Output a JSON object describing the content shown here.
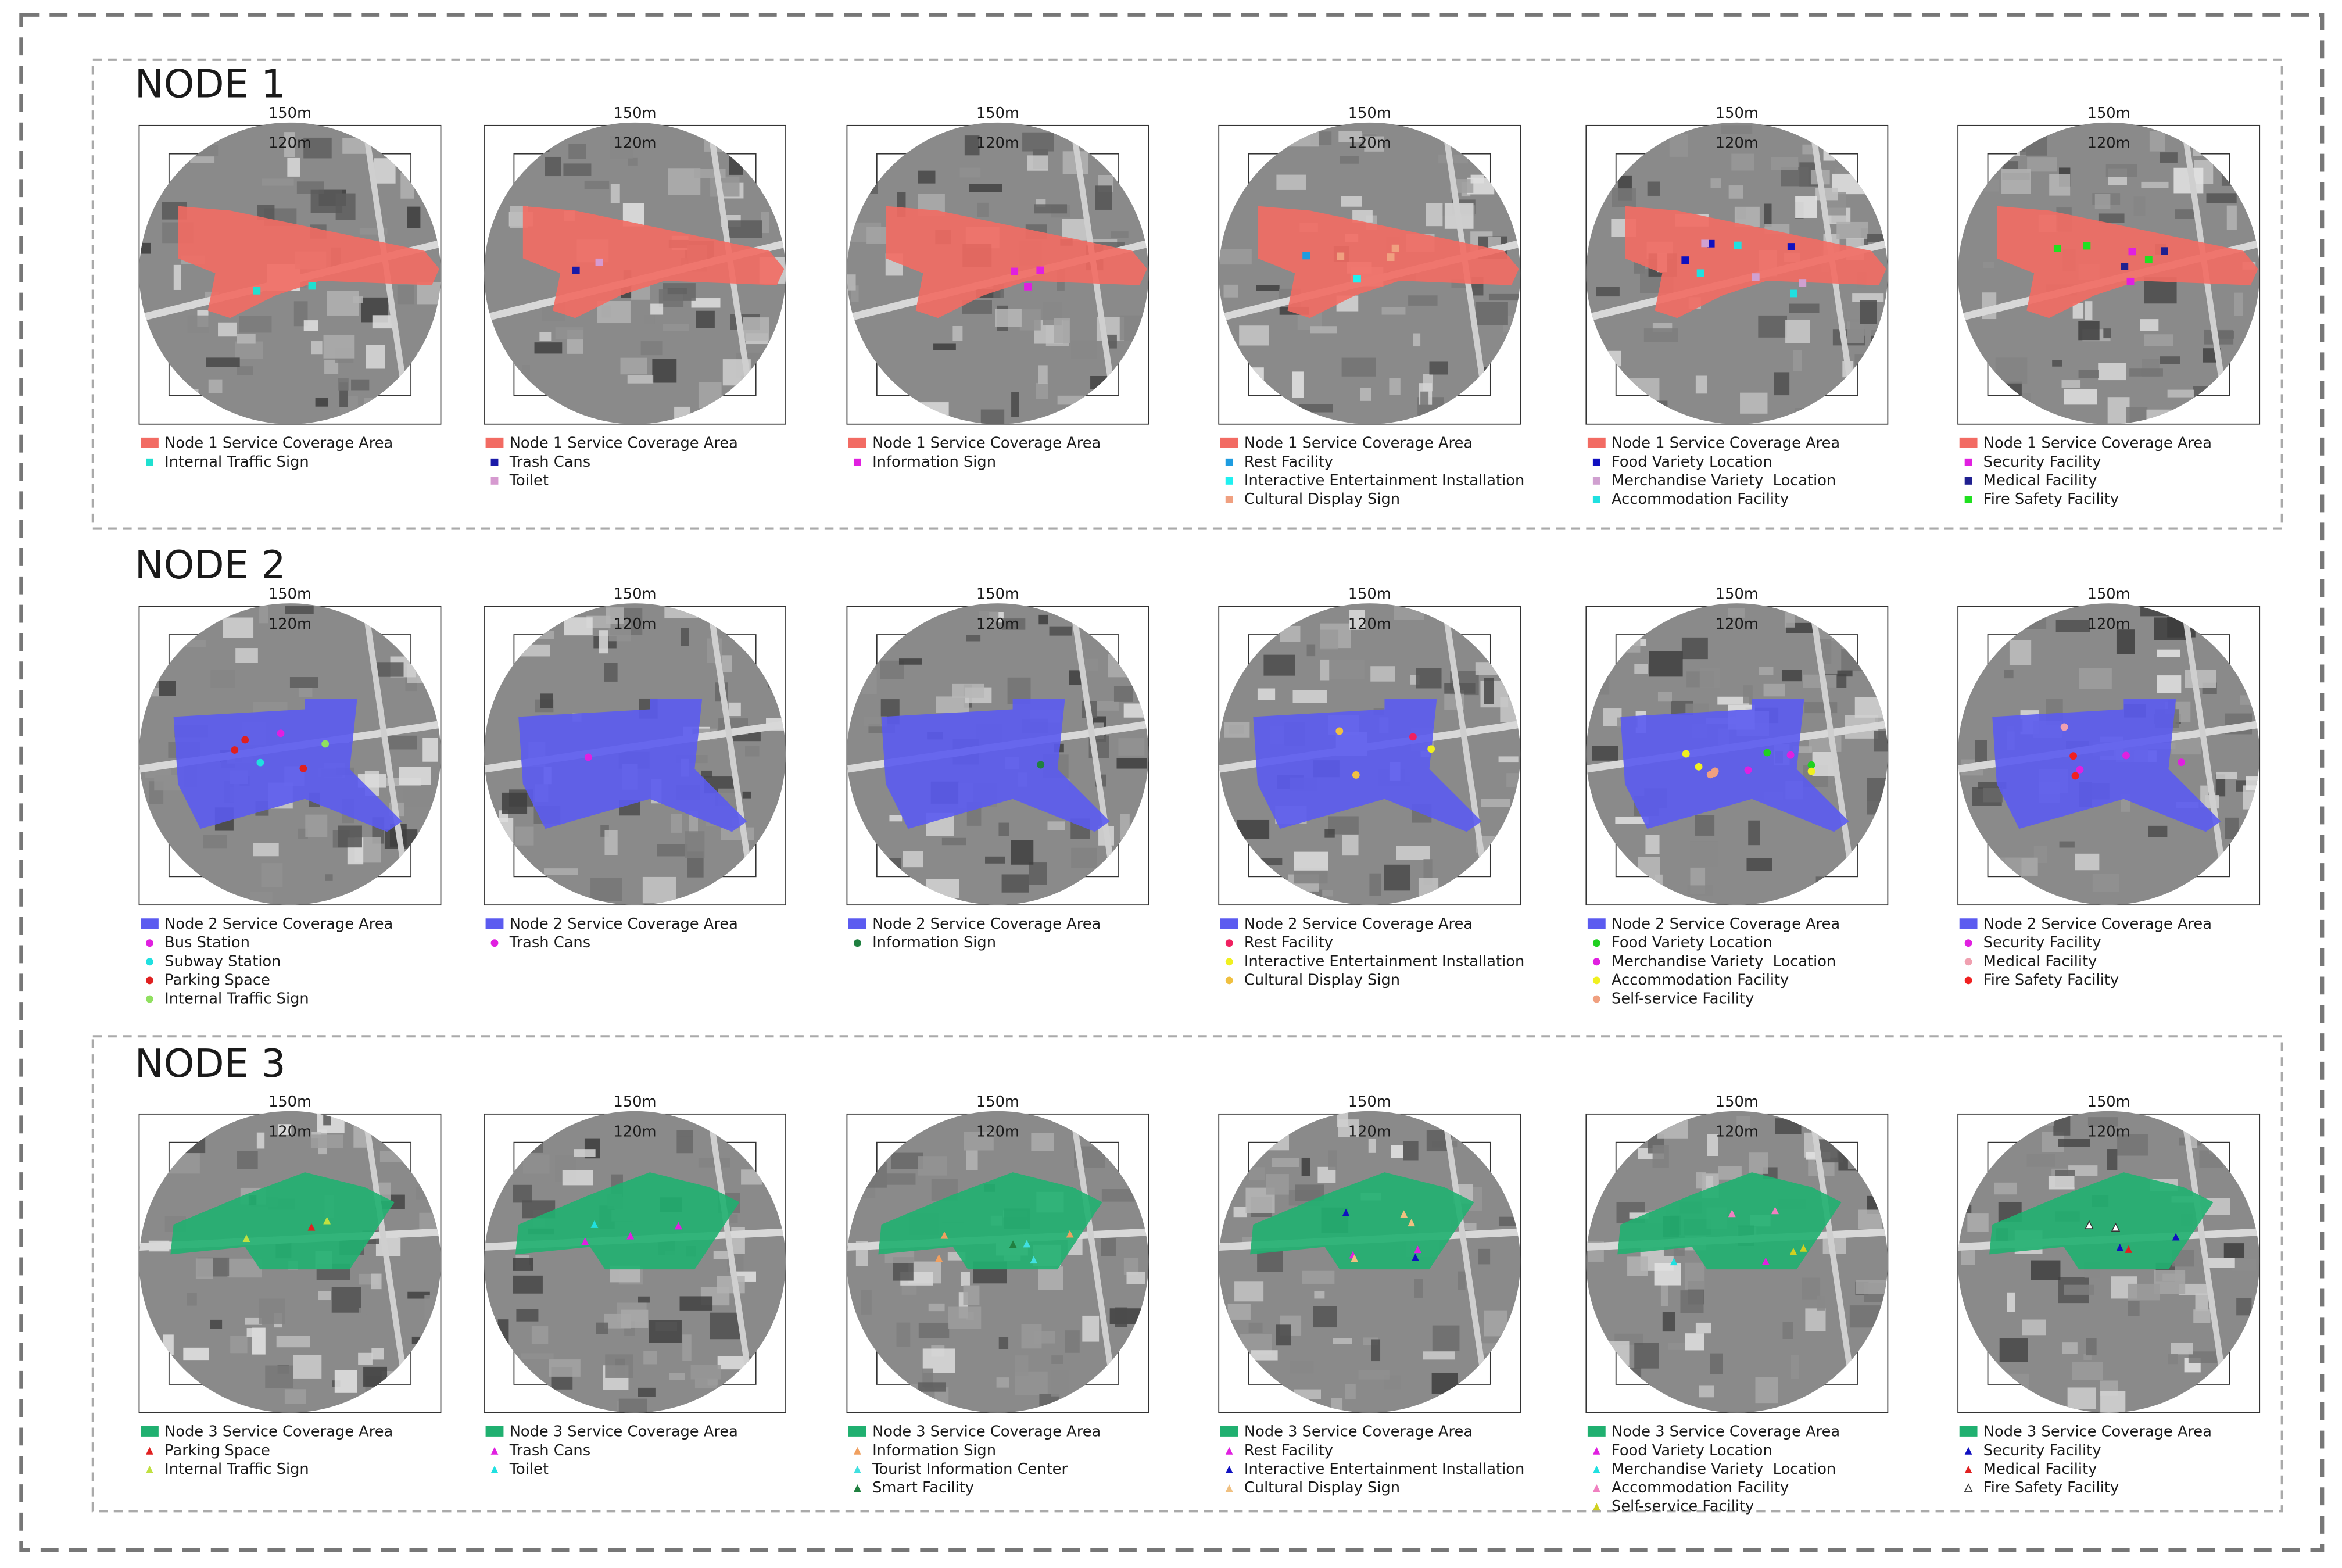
{
  "nodes": [
    {
      "title": "NODE 1",
      "panels": [
        {
          "outer": "150m",
          "inner": "120m",
          "legend": [
            {
              "label": "Node 1 Service Coverage Area",
              "color": "#f26b63"
            },
            {
              "label": "Internal Traffic Sign",
              "color": "#1fe0d0"
            }
          ]
        },
        {
          "outer": "150m",
          "inner": "120m",
          "legend": [
            {
              "label": "Node 1 Service Coverage Area",
              "color": "#f26b63"
            },
            {
              "label": "Trash Cans",
              "color": "#1a1aa8"
            },
            {
              "label": "Toilet",
              "color": "#d69ad0"
            }
          ]
        },
        {
          "outer": "150m",
          "inner": "120m",
          "legend": [
            {
              "label": "Node 1 Service Coverage Area",
              "color": "#f26b63"
            },
            {
              "label": "Information Sign",
              "color": "#e020e0"
            }
          ]
        },
        {
          "outer": "150m",
          "inner": "120m",
          "legend": [
            {
              "label": "Node 1 Service Coverage Area",
              "color": "#f26b63"
            },
            {
              "label": "Rest Facility",
              "color": "#1e9ce0"
            },
            {
              "label": "Interactive Entertainment Installation",
              "color": "#20f0f0"
            },
            {
              "label": "Cultural Display Sign",
              "color": "#f0a080"
            }
          ]
        },
        {
          "outer": "150m",
          "inner": "120m",
          "legend": [
            {
              "label": "Node 1 Service Coverage Area",
              "color": "#f26b63"
            },
            {
              "label": "Food Variety Location",
              "color": "#1010c0"
            },
            {
              "label": "Merchandise Variety  Location",
              "color": "#d0a0d0"
            },
            {
              "label": "Accommodation Facility",
              "color": "#20e0e0"
            }
          ]
        },
        {
          "outer": "150m",
          "inner": "120m",
          "legend": [
            {
              "label": "Node 1 Service Coverage Area",
              "color": "#f26b63"
            },
            {
              "label": "Security Facility",
              "color": "#e020e0"
            },
            {
              "label": "Medical Facility",
              "color": "#202090"
            },
            {
              "label": "Fire Safety Facility",
              "color": "#20e020"
            }
          ]
        }
      ]
    },
    {
      "title": "NODE 2",
      "panels": [
        {
          "outer": "150m",
          "inner": "120m",
          "legend": [
            {
              "label": "Node 2 Service Coverage Area",
              "color": "#5b5bf0"
            },
            {
              "label": "Bus Station",
              "color": "#e020e0"
            },
            {
              "label": "Subway Station",
              "color": "#20e0e0"
            },
            {
              "label": "Parking Space",
              "color": "#e02020"
            },
            {
              "label": "Internal Traffic Sign",
              "color": "#90e060"
            }
          ]
        },
        {
          "outer": "150m",
          "inner": "120m",
          "legend": [
            {
              "label": "Node 2 Service Coverage Area",
              "color": "#5b5bf0"
            },
            {
              "label": "Trash Cans",
              "color": "#e020e0"
            }
          ]
        },
        {
          "outer": "150m",
          "inner": "120m",
          "legend": [
            {
              "label": "Node 2 Service Coverage Area",
              "color": "#5b5bf0"
            },
            {
              "label": "Information Sign",
              "color": "#208040"
            }
          ]
        },
        {
          "outer": "150m",
          "inner": "120m",
          "legend": [
            {
              "label": "Node 2 Service Coverage Area",
              "color": "#5b5bf0"
            },
            {
              "label": "Rest Facility",
              "color": "#f02060"
            },
            {
              "label": "Interactive Entertainment Installation",
              "color": "#f0f020"
            },
            {
              "label": "Cultural Display Sign",
              "color": "#f0c040"
            }
          ]
        },
        {
          "outer": "150m",
          "inner": "120m",
          "legend": [
            {
              "label": "Node 2 Service Coverage Area",
              "color": "#5b5bf0"
            },
            {
              "label": "Food Variety Location",
              "color": "#20d020"
            },
            {
              "label": "Merchandise Variety  Location",
              "color": "#e020e0"
            },
            {
              "label": "Accommodation Facility",
              "color": "#f0f020"
            },
            {
              "label": "Self-service Facility",
              "color": "#f0a080"
            }
          ]
        },
        {
          "outer": "150m",
          "inner": "120m",
          "legend": [
            {
              "label": "Node 2 Service Coverage Area",
              "color": "#5b5bf0"
            },
            {
              "label": "Security Facility",
              "color": "#e020e0"
            },
            {
              "label": "Medical Facility",
              "color": "#f0a0b0"
            },
            {
              "label": "Fire Safety Facility",
              "color": "#f02020"
            }
          ]
        }
      ]
    },
    {
      "title": "NODE 3",
      "panels": [
        {
          "outer": "150m",
          "inner": "120m",
          "legend": [
            {
              "label": "Node 3 Service Coverage Area",
              "color": "#20b070"
            },
            {
              "label": "Parking Space",
              "color": "#e02020"
            },
            {
              "label": "Internal Traffic Sign",
              "color": "#c0e040"
            }
          ]
        },
        {
          "outer": "150m",
          "inner": "120m",
          "legend": [
            {
              "label": "Node 3 Service Coverage Area",
              "color": "#20b070"
            },
            {
              "label": "Trash Cans",
              "color": "#e020e0"
            },
            {
              "label": "Toilet",
              "color": "#20e0e0"
            }
          ]
        },
        {
          "outer": "150m",
          "inner": "120m",
          "legend": [
            {
              "label": "Node 3 Service Coverage Area",
              "color": "#20b070"
            },
            {
              "label": "Information Sign",
              "color": "#f0a060"
            },
            {
              "label": "Tourist Information Center",
              "color": "#40e0e0"
            },
            {
              "label": "Smart Facility",
              "color": "#208040"
            }
          ]
        },
        {
          "outer": "150m",
          "inner": "120m",
          "legend": [
            {
              "label": "Node 3 Service Coverage Area",
              "color": "#20b070"
            },
            {
              "label": "Rest Facility",
              "color": "#e020e0"
            },
            {
              "label": "Interactive Entertainment Installation",
              "color": "#1010c0"
            },
            {
              "label": "Cultural Display Sign",
              "color": "#f0c080"
            }
          ]
        },
        {
          "outer": "150m",
          "inner": "120m",
          "legend": [
            {
              "label": "Node 3 Service Coverage Area",
              "color": "#20b070"
            },
            {
              "label": "Food Variety Location",
              "color": "#e020e0"
            },
            {
              "label": "Merchandise Variety  Location",
              "color": "#20e0e0"
            },
            {
              "label": "Accommodation Facility",
              "color": "#f080c0"
            },
            {
              "label": "Self-service Facility",
              "color": "#d0d020"
            }
          ]
        },
        {
          "outer": "150m",
          "inner": "120m",
          "legend": [
            {
              "label": "Node 3 Service Coverage Area",
              "color": "#20b070"
            },
            {
              "label": "Security Facility",
              "color": "#1010c0"
            },
            {
              "label": "Medical Facility",
              "color": "#e02020"
            },
            {
              "label": "Fire Safety Facility",
              "color": "#ffffff"
            }
          ]
        }
      ]
    }
  ]
}
